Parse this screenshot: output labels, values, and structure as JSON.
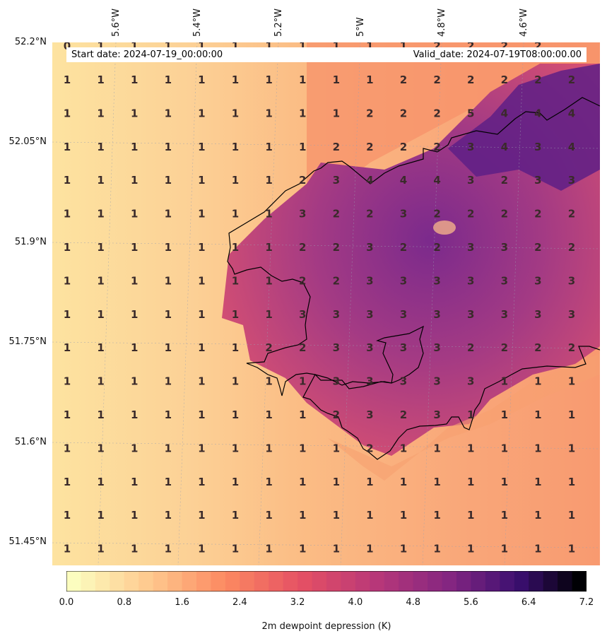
{
  "map": {
    "start_date": "Start date: 2024-07-19_00:00:00",
    "valid_date": "Valid_date: 2024-07-19T08:00:00.00",
    "lon_labels": [
      "5.6°W",
      "5.4°W",
      "5.2°W",
      "5°W",
      "4.8°W",
      "4.6°W"
    ],
    "lat_labels": [
      "52.2°N",
      "52.05°N",
      "51.9°N",
      "51.75°N",
      "51.6°N",
      "51.45°N"
    ],
    "top_row_values": [
      "0",
      "1",
      "1",
      "1",
      "1",
      "1",
      "1",
      "1",
      "1",
      "1",
      "1",
      "2",
      "2",
      "2",
      "2"
    ],
    "grid_values": [
      [
        "1",
        "1",
        "1",
        "1",
        "1",
        "1",
        "1",
        "1",
        "1",
        "1",
        "2",
        "2",
        "2",
        "2",
        "2",
        "2"
      ],
      [
        "1",
        "1",
        "1",
        "1",
        "1",
        "1",
        "1",
        "1",
        "1",
        "2",
        "2",
        "2",
        "5",
        "4",
        "4",
        "4"
      ],
      [
        "1",
        "1",
        "1",
        "1",
        "1",
        "1",
        "1",
        "1",
        "2",
        "2",
        "2",
        "2",
        "3",
        "4",
        "3",
        "4"
      ],
      [
        "1",
        "1",
        "1",
        "1",
        "1",
        "1",
        "1",
        "2",
        "3",
        "4",
        "4",
        "4",
        "3",
        "2",
        "3",
        "3"
      ],
      [
        "1",
        "1",
        "1",
        "1",
        "1",
        "1",
        "1",
        "3",
        "2",
        "2",
        "3",
        "2",
        "2",
        "2",
        "2",
        "2"
      ],
      [
        "1",
        "1",
        "1",
        "1",
        "1",
        "1",
        "1",
        "2",
        "2",
        "3",
        "2",
        "2",
        "3",
        "3",
        "2",
        "2"
      ],
      [
        "1",
        "1",
        "1",
        "1",
        "1",
        "1",
        "1",
        "2",
        "2",
        "3",
        "3",
        "3",
        "3",
        "3",
        "3",
        "3"
      ],
      [
        "1",
        "1",
        "1",
        "1",
        "1",
        "1",
        "1",
        "3",
        "3",
        "3",
        "3",
        "3",
        "3",
        "3",
        "3",
        "3"
      ],
      [
        "1",
        "1",
        "1",
        "1",
        "1",
        "1",
        "2",
        "2",
        "3",
        "3",
        "3",
        "3",
        "2",
        "2",
        "2",
        "2"
      ],
      [
        "1",
        "1",
        "1",
        "1",
        "1",
        "1",
        "1",
        "1",
        "3",
        "3",
        "3",
        "3",
        "3",
        "1",
        "1",
        "1"
      ],
      [
        "1",
        "1",
        "1",
        "1",
        "1",
        "1",
        "1",
        "1",
        "2",
        "3",
        "2",
        "3",
        "1",
        "1",
        "1",
        "1"
      ],
      [
        "1",
        "1",
        "1",
        "1",
        "1",
        "1",
        "1",
        "1",
        "1",
        "2",
        "1",
        "1",
        "1",
        "1",
        "1",
        "1"
      ],
      [
        "1",
        "1",
        "1",
        "1",
        "1",
        "1",
        "1",
        "1",
        "1",
        "1",
        "1",
        "1",
        "1",
        "1",
        "1",
        "1"
      ],
      [
        "1",
        "1",
        "1",
        "1",
        "1",
        "1",
        "1",
        "1",
        "1",
        "1",
        "1",
        "1",
        "1",
        "1",
        "1",
        "1"
      ],
      [
        "1",
        "1",
        "1",
        "1",
        "1",
        "1",
        "1",
        "1",
        "1",
        "1",
        "1",
        "1",
        "1",
        "1",
        "1",
        "1"
      ]
    ],
    "colors": {
      "low": "#fde7a6",
      "light": "#fcc58c",
      "mid": "#f89a6e",
      "high": "#cf4a72",
      "very_high": "#8a3190",
      "extreme": "#5a1d86",
      "coast": "#000000",
      "label": "#3a2a2a"
    }
  },
  "colorbar": {
    "label": "2m dewpoint depression (K)",
    "ticks": [
      "0.0",
      "0.8",
      "1.6",
      "2.4",
      "3.2",
      "4.0",
      "4.8",
      "5.6",
      "6.4",
      "7.2"
    ],
    "colormap": "magma_r"
  }
}
